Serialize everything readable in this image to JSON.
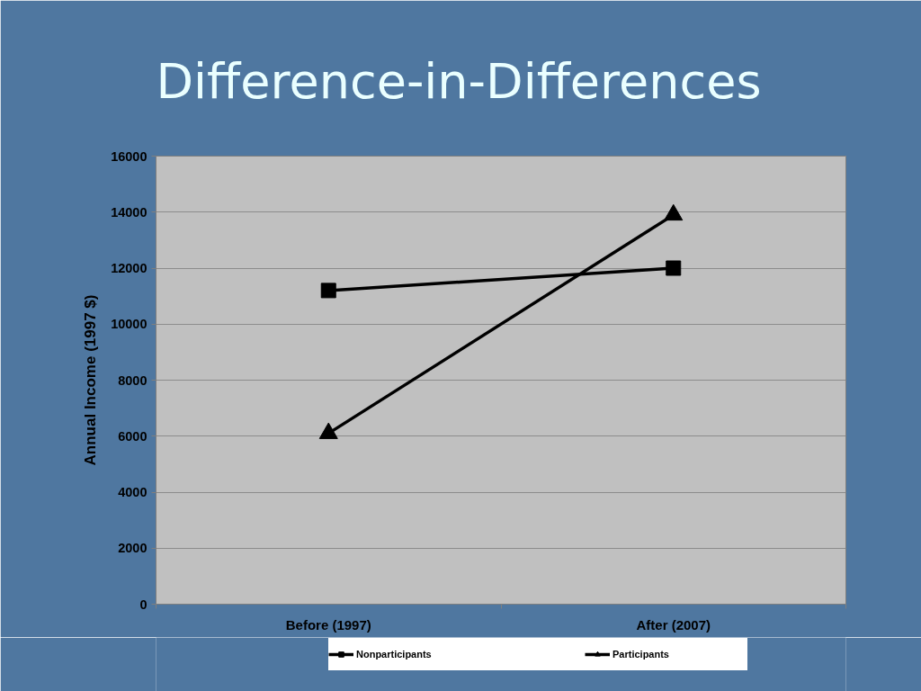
{
  "chart_data": {
    "type": "line",
    "title": "Difference-in-Differences",
    "ylabel": "Annual Income (1997 $)",
    "categories": [
      "Before (1997)",
      "After (2007)"
    ],
    "series": [
      {
        "name": "Nonparticipants",
        "color": "#000000",
        "marker": "square",
        "values": [
          11200,
          12000
        ]
      },
      {
        "name": "Participants",
        "color": "#000000",
        "marker": "triangle",
        "values": [
          6100,
          13900
        ]
      }
    ],
    "ylim": [
      0,
      16000
    ],
    "yticks": [
      0,
      2000,
      4000,
      6000,
      8000,
      10000,
      12000,
      14000,
      16000
    ],
    "grid": "y",
    "legend": "bottom",
    "line_style": "solid"
  }
}
